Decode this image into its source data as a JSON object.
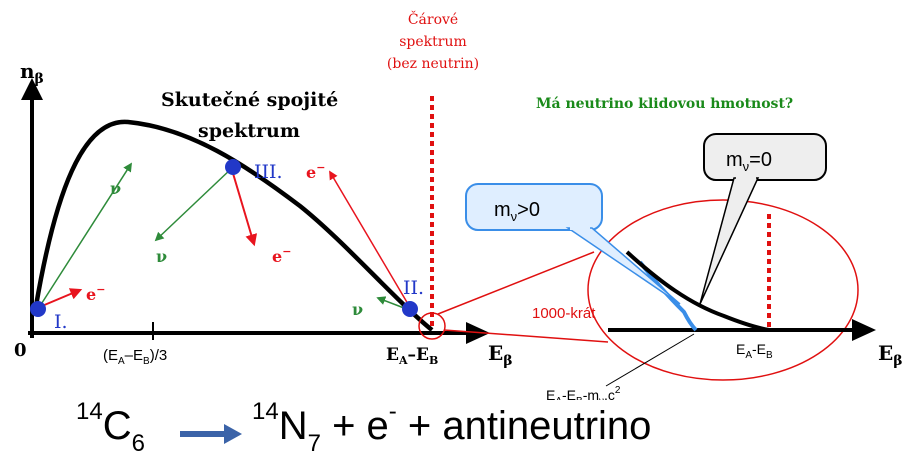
{
  "colors": {
    "curve": "#000000",
    "electron": "#e8141e",
    "neutrino": "#2e8b3a",
    "point": "#2238c8",
    "highlight": "#e01010",
    "question": "#1a8a1a",
    "arrow_reaction": "#3b63a8"
  },
  "labels": {
    "y_axis": "n",
    "y_axis_sub": "β",
    "x_axis": "E",
    "x_axis_sub": "β",
    "origin": "0",
    "x_tick_third": "(E",
    "x_tick_third_a": "A",
    "x_tick_third_mid": "–E",
    "x_tick_third_b": "B",
    "x_tick_third_end": ")/3",
    "x_end_e": "E",
    "x_end_a": "A",
    "x_end_mid": "–E",
    "x_end_b": "B",
    "continuous_line1": "Skutečné spojité",
    "continuous_line2": "spektrum",
    "line_spectrum_1": "Čárové",
    "line_spectrum_2": "spektrum",
    "line_spectrum_3": "(bez neutrin)",
    "question": "Má neutrino klidovou hmotnost?",
    "point_1": "I.",
    "point_2": "II.",
    "point_3": "III.",
    "electron": "e",
    "electron_sup": "−",
    "neutrino": "ν",
    "zoom": "1000-krát",
    "callout_zero_m": "m",
    "callout_zero_sub": "ν",
    "callout_zero_val": "=0",
    "callout_pos_m": "m",
    "callout_pos_sub": "ν",
    "callout_pos_val": ">0",
    "inset_end_e": "E",
    "inset_end_a": "A",
    "inset_end_mid": "-E",
    "inset_end_b": "B",
    "inset_shift_e": "E",
    "inset_shift_a": "A",
    "inset_shift_mid": "-E",
    "inset_shift_b": "B",
    "inset_shift_rest": "-m",
    "inset_shift_nu": "ν",
    "inset_shift_c": ".c",
    "inset_shift_sq": "2",
    "inset_axis_e": "E",
    "inset_axis_sub": "β"
  },
  "equation": {
    "c_mass": "14",
    "c_symbol": "C",
    "c_number": "6",
    "n_mass": "14",
    "n_symbol": "N",
    "n_number": "7",
    "plus_e": " + e",
    "e_charge": "-",
    "rest": " + antineutrino"
  }
}
